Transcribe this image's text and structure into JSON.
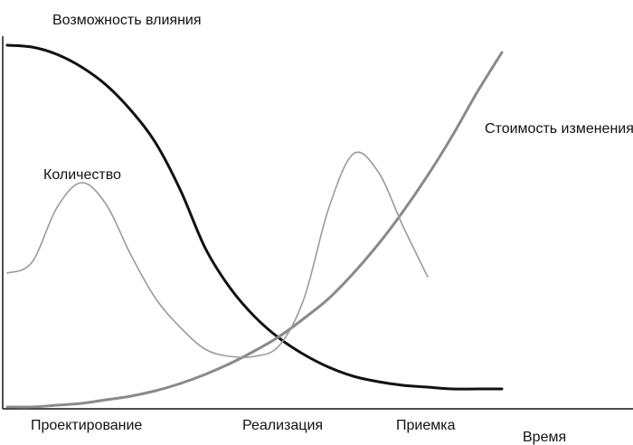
{
  "chart_data": {
    "type": "line",
    "title": "",
    "xlabel": "Время",
    "ylabel": "",
    "grid": false,
    "categories": [
      "Проектирование",
      "Реализация",
      "Приемка"
    ],
    "x": [
      0,
      0.05,
      0.1,
      0.15,
      0.2,
      0.25,
      0.3,
      0.35,
      0.4,
      0.45,
      0.5,
      0.55,
      0.6,
      0.65,
      0.7,
      0.75,
      0.8,
      0.85,
      0.9,
      0.95,
      1.0
    ],
    "series": [
      {
        "name": "Возможность влияния",
        "color": "#111111",
        "values": [
          1.0,
          0.995,
          0.975,
          0.94,
          0.89,
          0.82,
          0.73,
          0.6,
          0.44,
          0.33,
          0.25,
          0.19,
          0.145,
          0.11,
          0.085,
          0.07,
          0.06,
          0.055,
          0.05,
          0.05,
          0.05
        ]
      },
      {
        "name": "Стоимость изменения",
        "color": "#8a8a8a",
        "values": [
          0.0,
          0.0,
          0.005,
          0.01,
          0.02,
          0.03,
          0.045,
          0.065,
          0.09,
          0.12,
          0.155,
          0.195,
          0.245,
          0.3,
          0.37,
          0.45,
          0.54,
          0.64,
          0.75,
          0.87,
          0.98
        ]
      },
      {
        "name": "Количество",
        "color": "#9a9a9a",
        "values": [
          0.37,
          0.4,
          0.55,
          0.62,
          0.56,
          0.42,
          0.3,
          0.22,
          0.16,
          0.14,
          0.14,
          0.17,
          0.3,
          0.55,
          0.7,
          0.65,
          0.5,
          0.36,
          null,
          null,
          null
        ]
      }
    ],
    "ylim": [
      0,
      1
    ],
    "legend": "inline labels"
  }
}
